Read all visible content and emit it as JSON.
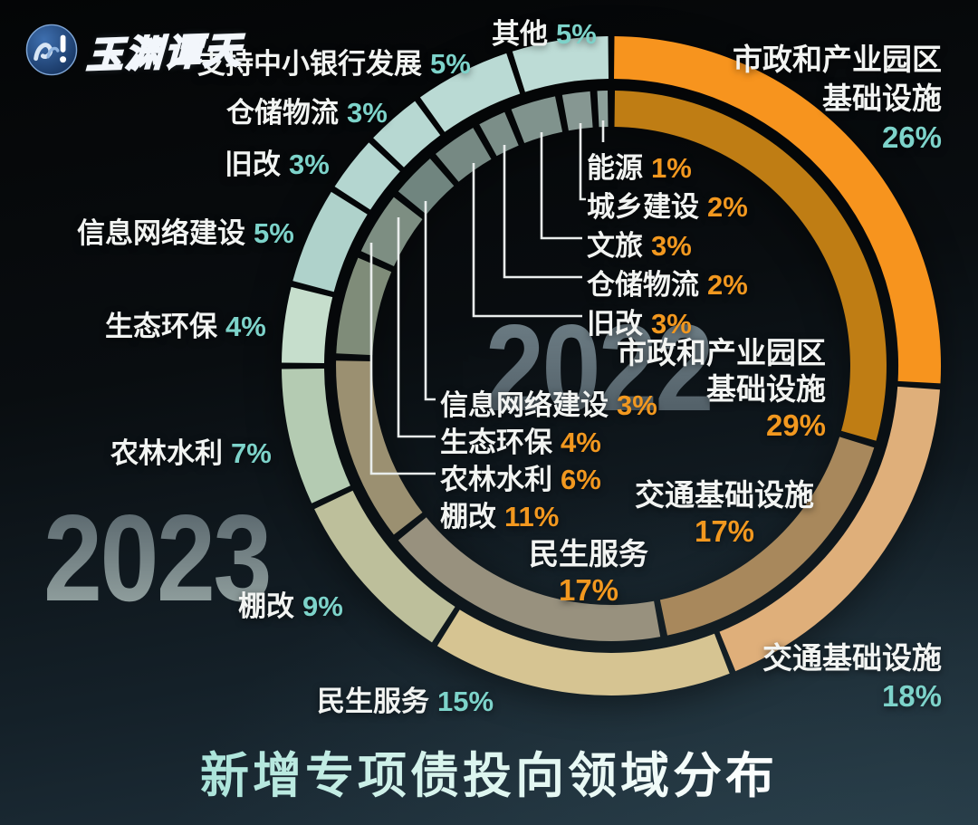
{
  "logo": {
    "brand": "玉渊谭天",
    "icon": "wave-exclamation-icon"
  },
  "title": "新增专项债投向领域分布",
  "colors": {
    "pct_2023": "#7DD3CA",
    "pct_2022": "#F2981F",
    "label_text": "#F2F4F2",
    "leader_line": "#E9EDEC",
    "accent_orange_outer": "#F7941E",
    "accent_orange_inner": "#BF7D14"
  },
  "chart_data": {
    "type": "donut-double-ring",
    "title": "新增专项债投向领域分布",
    "legend_position": "around",
    "watermarks": [
      "2023",
      "2022"
    ],
    "rings": [
      {
        "year": "2023",
        "position": "outer",
        "pct_color": "#7DD3CA",
        "series": [
          {
            "label": "市政和产业园区基础设施",
            "label_lines": [
              "市政和产业园区",
              "基础设施"
            ],
            "value": 26,
            "pct": "26%",
            "color": "#F7941E"
          },
          {
            "label": "交通基础设施",
            "value": 18,
            "pct": "18%",
            "color": "#DFAF7A"
          },
          {
            "label": "民生服务",
            "value": 15,
            "pct": "15%",
            "color": "#D6C492"
          },
          {
            "label": "棚改",
            "value": 9,
            "pct": "9%",
            "color": "#BDBF9B"
          },
          {
            "label": "农林水利",
            "value": 7,
            "pct": "7%",
            "color": "#B4CBB2"
          },
          {
            "label": "生态环保",
            "value": 4,
            "pct": "4%",
            "color": "#C6DECC"
          },
          {
            "label": "信息网络建设",
            "value": 5,
            "pct": "5%",
            "color": "#AFD2CB"
          },
          {
            "label": "旧改",
            "value": 3,
            "pct": "3%",
            "color": "#B4D6D0"
          },
          {
            "label": "仓储物流",
            "value": 3,
            "pct": "3%",
            "color": "#B7D8D2"
          },
          {
            "label": "支持中小银行发展",
            "value": 5,
            "pct": "5%",
            "color": "#BADAD4"
          },
          {
            "label": "其他",
            "value": 5,
            "pct": "5%",
            "color": "#BDDCD6"
          }
        ]
      },
      {
        "year": "2022",
        "position": "inner",
        "pct_color": "#F2981F",
        "series": [
          {
            "label": "市政和产业园区基础设施",
            "label_lines": [
              "市政和产业园区",
              "基础设施"
            ],
            "value": 29,
            "pct": "29%",
            "color": "#BF7D14"
          },
          {
            "label": "交通基础设施",
            "value": 17,
            "pct": "17%",
            "color": "#A8885C"
          },
          {
            "label": "民生服务",
            "value": 17,
            "pct": "17%",
            "color": "#98917E"
          },
          {
            "label": "棚改",
            "value": 11,
            "pct": "11%",
            "color": "#9B9071"
          },
          {
            "label": "农林水利",
            "value": 6,
            "pct": "6%",
            "color": "#7F8C79"
          },
          {
            "label": "生态环保",
            "value": 4,
            "pct": "4%",
            "color": "#7D8E82"
          },
          {
            "label": "信息网络建设",
            "value": 3,
            "pct": "3%",
            "color": "#70857F"
          },
          {
            "label": "旧改",
            "value": 3,
            "pct": "3%",
            "color": "#768983"
          },
          {
            "label": "仓储物流",
            "value": 2,
            "pct": "2%",
            "color": "#7B8E88"
          },
          {
            "label": "文旅",
            "value": 3,
            "pct": "3%",
            "color": "#80938D"
          },
          {
            "label": "城乡建设",
            "value": 2,
            "pct": "2%",
            "color": "#869792"
          },
          {
            "label": "能源",
            "value": 1,
            "pct": "1%",
            "color": "#8CA09A"
          }
        ]
      }
    ]
  }
}
